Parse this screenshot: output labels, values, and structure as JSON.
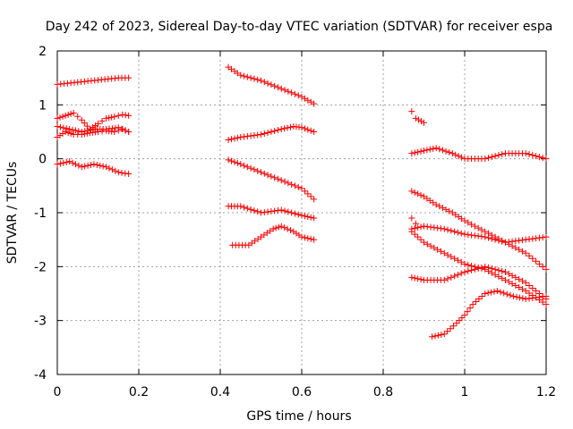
{
  "chart_data": {
    "type": "scatter",
    "title": "Day 242 of 2023, Sidereal Day-to-day VTEC variation (SDTVAR) for receiver espa",
    "xlabel": "GPS time / hours",
    "ylabel": "SDTVAR / TECUs",
    "xlim": [
      0,
      1.2
    ],
    "ylim": [
      -4,
      2
    ],
    "xticks": [
      0,
      0.2,
      0.4,
      0.6,
      0.8,
      1,
      1.2
    ],
    "xtick_labels": [
      "0",
      "0.2",
      "0.4",
      "0.6",
      "0.8",
      "1",
      "1.2"
    ],
    "yticks": [
      -4,
      -3,
      -2,
      -1,
      0,
      1,
      2
    ],
    "ytick_labels": [
      "-4",
      "-3",
      "-2",
      "-1",
      "0",
      "1",
      "2"
    ],
    "grid": true,
    "marker": "+",
    "marker_color": "#ff0000",
    "series": [
      {
        "name": "s1",
        "x": [
          0.0,
          0.05,
          0.1,
          0.15,
          0.175
        ],
        "y": [
          1.38,
          1.42,
          1.46,
          1.5,
          1.5
        ]
      },
      {
        "name": "s2",
        "x": [
          0.0,
          0.02,
          0.04,
          0.06,
          0.08,
          0.1,
          0.12,
          0.14,
          0.16,
          0.175
        ],
        "y": [
          0.75,
          0.8,
          0.85,
          0.72,
          0.55,
          0.65,
          0.75,
          0.78,
          0.82,
          0.8
        ]
      },
      {
        "name": "s3",
        "x": [
          0.0,
          0.03,
          0.06,
          0.09,
          0.12,
          0.15,
          0.175
        ],
        "y": [
          0.6,
          0.55,
          0.5,
          0.55,
          0.55,
          0.58,
          0.5
        ]
      },
      {
        "name": "s4",
        "x": [
          0.0,
          0.02,
          0.04,
          0.06,
          0.08,
          0.1,
          0.12,
          0.14,
          0.16,
          0.175
        ],
        "y": [
          0.4,
          0.5,
          0.45,
          0.45,
          0.48,
          0.5,
          0.52,
          0.5,
          0.55,
          0.5
        ]
      },
      {
        "name": "s5",
        "x": [
          0.0,
          0.03,
          0.06,
          0.09,
          0.12,
          0.15,
          0.175
        ],
        "y": [
          -0.1,
          -0.05,
          -0.15,
          -0.1,
          -0.15,
          -0.25,
          -0.28
        ]
      },
      {
        "name": "s6",
        "x": [
          0.42,
          0.45,
          0.5,
          0.55,
          0.6,
          0.63
        ],
        "y": [
          1.7,
          1.55,
          1.45,
          1.3,
          1.15,
          1.02
        ]
      },
      {
        "name": "s7",
        "x": [
          0.42,
          0.45,
          0.5,
          0.55,
          0.58,
          0.6,
          0.63
        ],
        "y": [
          0.35,
          0.4,
          0.45,
          0.55,
          0.6,
          0.58,
          0.5
        ]
      },
      {
        "name": "s8",
        "x": [
          0.42,
          0.45,
          0.5,
          0.55,
          0.6,
          0.63
        ],
        "y": [
          -0.02,
          -0.1,
          -0.25,
          -0.4,
          -0.55,
          -0.75
        ]
      },
      {
        "name": "s9",
        "x": [
          0.42,
          0.45,
          0.5,
          0.55,
          0.6,
          0.63
        ],
        "y": [
          -0.88,
          -0.88,
          -1.0,
          -0.95,
          -1.05,
          -1.1
        ]
      },
      {
        "name": "s10",
        "x": [
          0.43,
          0.47,
          0.5,
          0.53,
          0.55,
          0.58,
          0.6,
          0.63
        ],
        "y": [
          -1.6,
          -1.6,
          -1.45,
          -1.3,
          -1.25,
          -1.35,
          -1.45,
          -1.5
        ]
      },
      {
        "name": "s11",
        "x": [
          0.87,
          0.88,
          0.9
        ],
        "y": [
          0.88,
          0.75,
          0.67
        ]
      },
      {
        "name": "s12",
        "x": [
          0.87,
          0.9,
          0.93,
          0.97,
          1.0,
          1.05,
          1.1,
          1.15,
          1.2
        ],
        "y": [
          0.1,
          0.15,
          0.2,
          0.1,
          0.0,
          0.0,
          0.1,
          0.1,
          0.0
        ]
      },
      {
        "name": "s13",
        "x": [
          0.87,
          0.9,
          0.93,
          0.97,
          1.0,
          1.05,
          1.1,
          1.15,
          1.2
        ],
        "y": [
          -0.6,
          -0.7,
          -0.85,
          -1.0,
          -1.15,
          -1.35,
          -1.55,
          -1.75,
          -2.05
        ]
      },
      {
        "name": "s14",
        "x": [
          0.87,
          0.9,
          0.95,
          1.0,
          1.05,
          1.1,
          1.15,
          1.2
        ],
        "y": [
          -1.3,
          -1.25,
          -1.3,
          -1.4,
          -1.45,
          -1.55,
          -1.5,
          -1.45
        ]
      },
      {
        "name": "s15",
        "x": [
          0.87,
          0.9,
          0.95,
          1.0,
          1.05,
          1.1,
          1.15,
          1.2
        ],
        "y": [
          -1.35,
          -1.55,
          -1.75,
          -1.95,
          -2.05,
          -2.25,
          -2.45,
          -2.7
        ]
      },
      {
        "name": "s16",
        "x": [
          0.87,
          0.9,
          0.95,
          1.0,
          1.05,
          1.1,
          1.15,
          1.2
        ],
        "y": [
          -2.2,
          -2.25,
          -2.25,
          -2.1,
          -2.0,
          -2.1,
          -2.3,
          -2.6
        ]
      },
      {
        "name": "s17",
        "x": [
          0.92,
          0.95,
          0.98,
          1.0,
          1.02,
          1.05,
          1.08,
          1.12,
          1.15,
          1.2
        ],
        "y": [
          -3.3,
          -3.25,
          -3.05,
          -2.9,
          -2.7,
          -2.5,
          -2.45,
          -2.55,
          -2.6,
          -2.55
        ]
      },
      {
        "name": "s18",
        "x": [
          0.87,
          0.88
        ],
        "y": [
          -1.1,
          -1.2
        ]
      }
    ]
  }
}
